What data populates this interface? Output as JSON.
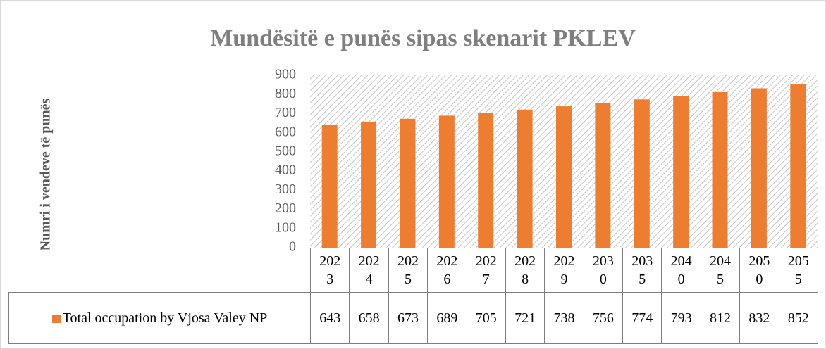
{
  "chart_data": {
    "type": "bar",
    "title": "Mundësitë e punës sipas skenarit PKLEV",
    "y_label": "Numri i vendeve të punës",
    "categories": [
      "2023",
      "2024",
      "2025",
      "2026",
      "2027",
      "2028",
      "2029",
      "2030",
      "2035",
      "2040",
      "2045",
      "2050",
      "2055"
    ],
    "series": [
      {
        "name": "Total occupation by Vjosa Valey NP",
        "color": "#ed7d31",
        "values": [
          643,
          658,
          673,
          689,
          705,
          721,
          738,
          756,
          774,
          793,
          812,
          832,
          852
        ]
      }
    ],
    "ylim": [
      0,
      900
    ],
    "yticks": [
      0,
      100,
      200,
      300,
      400,
      500,
      600,
      700,
      800,
      900
    ],
    "data_table": true
  }
}
